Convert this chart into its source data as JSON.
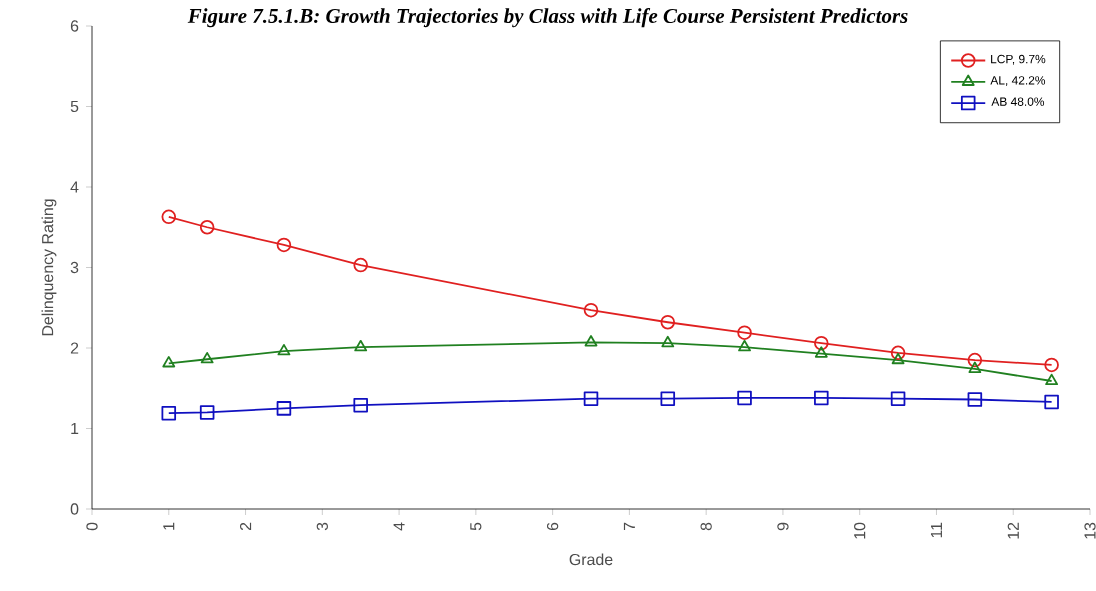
{
  "chart_data": {
    "type": "line",
    "title": "Figure 7.5.1.B: Growth Trajectories by Class with Life Course Persistent Predictors",
    "xlabel": "Grade",
    "ylabel": "Delinquency Rating",
    "x": [
      1,
      1.5,
      2.5,
      3.5,
      6.5,
      7.5,
      8.5,
      9.5,
      10.5,
      11.5,
      12.5
    ],
    "series": [
      {
        "name": "LCP, 9.7%",
        "color": "#e02020",
        "marker": "circle",
        "values": [
          3.63,
          3.5,
          3.28,
          3.03,
          2.47,
          2.32,
          2.19,
          2.06,
          1.94,
          1.85,
          1.79
        ]
      },
      {
        "name": "AL, 42.2%",
        "color": "#208020",
        "marker": "triangle",
        "values": [
          1.81,
          1.86,
          1.96,
          2.01,
          2.07,
          2.06,
          2.01,
          1.93,
          1.85,
          1.74,
          1.59
        ]
      },
      {
        "name": "AB 48.0%",
        "color": "#1010c0",
        "marker": "square",
        "values": [
          1.19,
          1.2,
          1.25,
          1.29,
          1.37,
          1.37,
          1.38,
          1.38,
          1.37,
          1.36,
          1.33
        ]
      }
    ],
    "xlim": [
      0,
      13
    ],
    "xticks": [
      0,
      1,
      2,
      3,
      4,
      5,
      6,
      7,
      8,
      9,
      10,
      11,
      12,
      13
    ],
    "ylim": [
      0,
      6
    ],
    "yticks": [
      0,
      1,
      2,
      3,
      4,
      5,
      6
    ],
    "grid": false,
    "legend": "top right",
    "line_style": "solid"
  }
}
